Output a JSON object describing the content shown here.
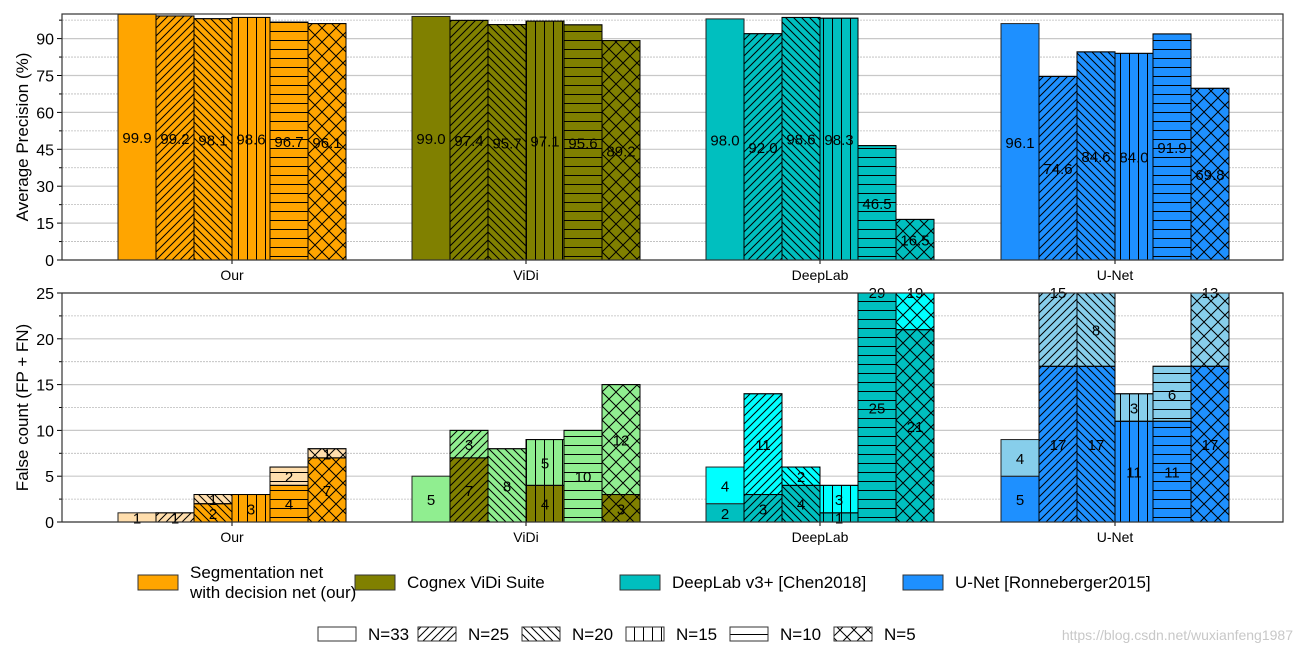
{
  "chart_data": [
    {
      "type": "bar",
      "ylabel": "Average Precision (%)",
      "ylim": [
        0,
        100
      ],
      "yticks": [
        0,
        15,
        30,
        45,
        60,
        75,
        90
      ],
      "grid": true,
      "categories": [
        "Our",
        "ViDi",
        "DeepLab",
        "U-Net"
      ],
      "hatch_series": [
        "N=33",
        "N=25",
        "N=20",
        "N=15",
        "N=10",
        "N=5"
      ],
      "values": [
        [
          99.9,
          99.2,
          98.1,
          98.6,
          96.7,
          96.1
        ],
        [
          99.0,
          97.4,
          95.7,
          97.1,
          95.6,
          89.2
        ],
        [
          98.0,
          92.0,
          98.6,
          98.3,
          46.5,
          16.5
        ],
        [
          96.1,
          74.6,
          84.6,
          84.0,
          91.9,
          69.8
        ]
      ],
      "labels": [
        [
          "99.9",
          "99.2",
          "98.1",
          "98.6",
          "96.7",
          "96.1"
        ],
        [
          "99.0",
          "97.4",
          "95.7",
          "97.1",
          "95.6",
          "89.2"
        ],
        [
          "98.0",
          "92.0",
          "98.6",
          "98.3",
          "46.5",
          "16.5"
        ],
        [
          "96.1",
          "74.6",
          "84.6",
          "84.0",
          "91.9",
          "69.8"
        ]
      ]
    },
    {
      "type": "bar",
      "stacked": true,
      "ylabel": "False count (FP + FN)",
      "ylim": [
        0,
        25
      ],
      "yticks": [
        0,
        5,
        10,
        15,
        20,
        25
      ],
      "grid": true,
      "categories": [
        "Our",
        "ViDi",
        "DeepLab",
        "U-Net"
      ],
      "hatch_series": [
        "N=33",
        "N=25",
        "N=20",
        "N=15",
        "N=10",
        "N=5"
      ],
      "bottom_values": [
        [
          0,
          0,
          2,
          3,
          4,
          7
        ],
        [
          0,
          7,
          0,
          4,
          0,
          3
        ],
        [
          2,
          3,
          4,
          1,
          25,
          21
        ],
        [
          5,
          17,
          17,
          11,
          11,
          17
        ]
      ],
      "top_values": [
        [
          1,
          1,
          1,
          0,
          2,
          1
        ],
        [
          5,
          3,
          8,
          5,
          10,
          12
        ],
        [
          4,
          11,
          2,
          3,
          29,
          19
        ],
        [
          4,
          15,
          8,
          3,
          6,
          13
        ]
      ]
    }
  ],
  "colors": {
    "Our": {
      "dark": "#FFA500",
      "light": "#FFDEAD"
    },
    "ViDi": {
      "dark": "#808000",
      "light": "#90EE90"
    },
    "DeepLab": {
      "dark": "#00BFBF",
      "light": "#00FFFF"
    },
    "U-Net": {
      "dark": "#1E90FF",
      "light": "#87CEEB"
    }
  },
  "legend": {
    "methods": [
      {
        "label_line1": "Segmentation net",
        "label_line2": "with decision net (our)",
        "color": "#FFA500"
      },
      {
        "label_line1": "Cognex ViDi Suite",
        "label_line2": "",
        "color": "#808000"
      },
      {
        "label_line1": "DeepLab v3+ [Chen2018]",
        "label_line2": "",
        "color": "#00BFBF"
      },
      {
        "label_line1": "U-Net [Ronneberger2015]",
        "label_line2": "",
        "color": "#1E90FF"
      }
    ],
    "hatches": [
      {
        "label": "N=33",
        "hatch": "none"
      },
      {
        "label": "N=25",
        "hatch": "forward-diagonal"
      },
      {
        "label": "N=20",
        "hatch": "back-diagonal"
      },
      {
        "label": "N=15",
        "hatch": "vertical"
      },
      {
        "label": "N=10",
        "hatch": "horizontal"
      },
      {
        "label": "N=5",
        "hatch": "crosshatch"
      }
    ]
  },
  "watermark": "https://blog.csdn.net/wuxianfeng1987"
}
